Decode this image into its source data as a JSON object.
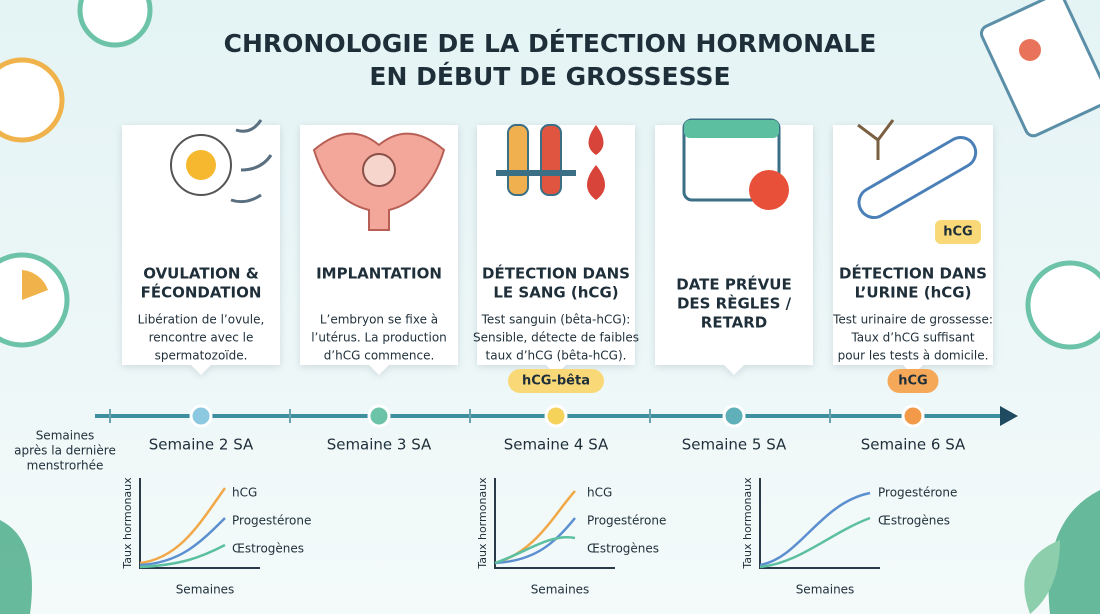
{
  "header": {
    "title": [
      "CHRONOLOGIE DE LA DÉTECTION HORMONALE",
      "EN DÉBUT DE GROSSESSE"
    ]
  },
  "cards": [
    {
      "title": [
        "OVULATION &",
        "FÉCONDATION"
      ],
      "description": [
        "Libération de l’ovule,",
        "rencontre avec le",
        "spermatozoïde."
      ]
    },
    {
      "title": [
        "IMPLANTATION"
      ],
      "description": [
        "L’embryon se fixe à",
        "l’utérus. La production",
        "d’hCG commence."
      ]
    },
    {
      "title": [
        "DÉTECTION DANS",
        "LE SANG (hCG)"
      ],
      "description": [
        "Test sanguin (bêta-hCG):",
        "Sensible, détecte de faibles",
        "taux d’hCG (bêta-hCG)."
      ],
      "badge": "hCG-bêta"
    },
    {
      "title": [
        "DATE PRÉVUE",
        "DES RÈGLES /",
        "RETARD"
      ]
    },
    {
      "title": [
        "DÉTECTION DANS",
        "L’URINE (hCG)"
      ],
      "description": [
        "Test urinaire de grossesse:",
        "Taux d’hCG suffisant",
        "pour les tests à domicile."
      ],
      "badge": "hCG",
      "image_label": "hCG"
    }
  ],
  "timeline": {
    "axis_label": [
      "Semaines",
      "après la dernière",
      "menstrorhée"
    ],
    "weeks": [
      "Semaine 2 SA",
      "Semaine 3 SA",
      "Semaine 4 SA",
      "Semaine 5 SA",
      "Semaine 6 SA"
    ]
  },
  "mini_charts": [
    {
      "y_label": "Taux hormonaux",
      "x_label": "Semaines",
      "series": [
        "hCG",
        "Progestérone",
        "Œstrogènes"
      ]
    },
    {
      "y_label": "Taux hormonaux",
      "x_label": "Semaines",
      "series": [
        "hCG",
        "Progestérone",
        "Œstrogènes"
      ]
    },
    {
      "y_label": "Taux hormonaux",
      "x_label": "Semaines",
      "series": [
        "Progestérone",
        "Œstrogènes"
      ]
    }
  ]
}
